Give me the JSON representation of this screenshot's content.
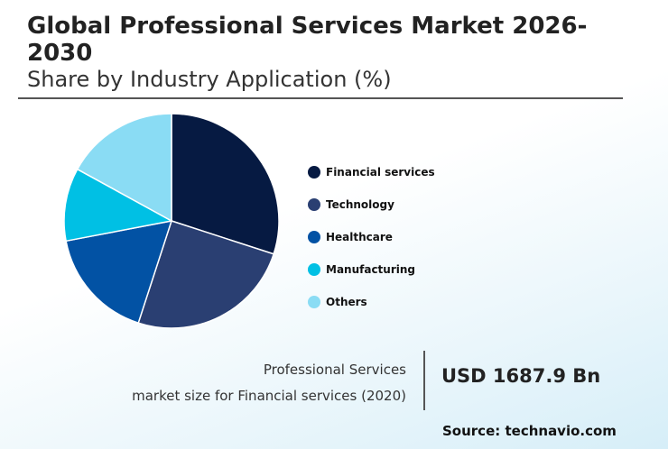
{
  "header": {
    "title": "Global Professional Services Market 2026-2030",
    "subtitle": "Share by Industry Application (%)"
  },
  "chart_data": {
    "type": "pie",
    "categories": [
      "Financial services",
      "Technology",
      "Healthcare",
      "Manufacturing",
      "Others"
    ],
    "values": [
      30,
      25,
      17,
      11,
      17
    ],
    "colors": [
      "#061a42",
      "#2a3f72",
      "#0252a4",
      "#00c0e4",
      "#8adcf4"
    ],
    "legend_position": "right"
  },
  "footer": {
    "info_line1": "Professional Services",
    "info_line2": "market size for Financial services (2020)",
    "value": "USD 1687.9 Bn",
    "source": "Source: technavio.com"
  }
}
